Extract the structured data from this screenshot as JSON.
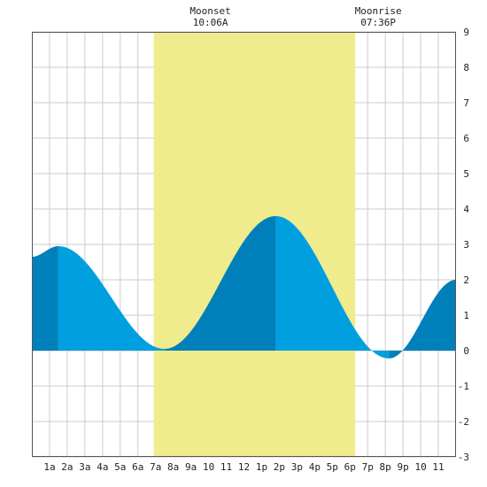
{
  "chart_data": {
    "type": "area",
    "title": "",
    "xlabel": "",
    "ylabel": "",
    "x_tick_labels": [
      "1a",
      "2a",
      "3a",
      "4a",
      "5a",
      "6a",
      "7a",
      "8a",
      "9a",
      "10",
      "11",
      "12",
      "1p",
      "2p",
      "3p",
      "4p",
      "5p",
      "6p",
      "7p",
      "8p",
      "9p",
      "10",
      "11"
    ],
    "x_tick_hours": [
      1,
      2,
      3,
      4,
      5,
      6,
      7,
      8,
      9,
      10,
      11,
      12,
      13,
      14,
      15,
      16,
      17,
      18,
      19,
      20,
      21,
      22,
      23
    ],
    "xlim": [
      0,
      24
    ],
    "y_tick_labels": [
      "9",
      "8",
      "7",
      "6",
      "5",
      "4",
      "3",
      "2",
      "1",
      "0",
      "-1",
      "-2",
      "-3"
    ],
    "y_tick_values": [
      9,
      8,
      7,
      6,
      5,
      4,
      3,
      2,
      1,
      0,
      -1,
      -2,
      -3
    ],
    "ylim": [
      -3,
      9
    ],
    "grid": true,
    "daylight_band_hours": [
      6.9,
      18.3
    ],
    "daylight_color": "#f0eb8c",
    "tide_series": {
      "hours": [
        0.0,
        1.5,
        7.5,
        13.8,
        20.2,
        24.0
      ],
      "heights": [
        2.65,
        2.95,
        0.05,
        3.8,
        -0.22,
        2.0
      ],
      "rising_color": "#0080bb",
      "falling_color": "#00a0e0"
    },
    "annotations": [
      {
        "name": "moonset",
        "label": "Moonset",
        "time": "10:06A",
        "hour": 10.1
      },
      {
        "name": "moonrise",
        "label": "Moonrise",
        "time": "07:36P",
        "hour": 19.6
      }
    ]
  }
}
